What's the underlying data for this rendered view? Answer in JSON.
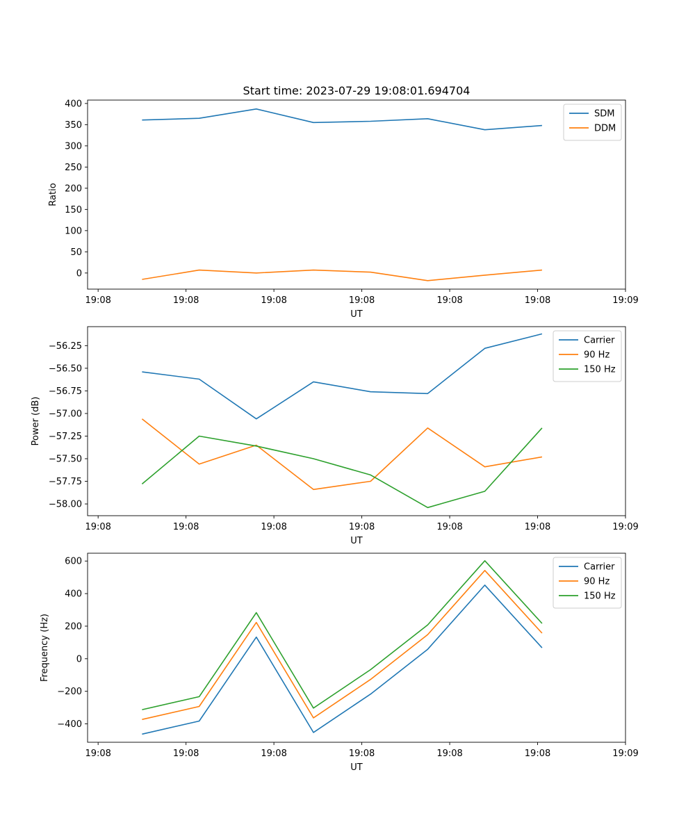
{
  "figure_title": "Start time: 2023-07-29 19:08:01.694704",
  "chart_data": [
    {
      "type": "line",
      "title": "Start time: 2023-07-29 19:08:01.694704",
      "xlabel": "UT",
      "ylabel": "Ratio",
      "x_tick_labels": [
        "19:08",
        "19:08",
        "19:08",
        "19:08",
        "19:08",
        "19:08",
        "19:09"
      ],
      "x": [
        0.5,
        1.15,
        1.8,
        2.45,
        3.1,
        3.75,
        4.4,
        5.05
      ],
      "xlim": [
        -0.12,
        6.0
      ],
      "ylim": [
        -38,
        408
      ],
      "yticks": [
        0,
        50,
        100,
        150,
        200,
        250,
        300,
        350,
        400
      ],
      "legend": "top-right",
      "series": [
        {
          "name": "SDM",
          "color": "#1f77b4",
          "values": [
            361,
            365,
            387,
            355,
            358,
            364,
            338,
            348
          ]
        },
        {
          "name": "DDM",
          "color": "#ff7f0e",
          "values": [
            -15,
            7,
            0,
            7,
            2,
            -18,
            -5,
            7
          ]
        }
      ]
    },
    {
      "type": "line",
      "title": "",
      "xlabel": "UT",
      "ylabel": "Power (dB)",
      "x_tick_labels": [
        "19:08",
        "19:08",
        "19:08",
        "19:08",
        "19:08",
        "19:08",
        "19:09"
      ],
      "x": [
        0.5,
        1.15,
        1.8,
        2.45,
        3.1,
        3.75,
        4.4,
        5.05
      ],
      "xlim": [
        -0.12,
        6.0
      ],
      "ylim": [
        -58.13,
        -56.04
      ],
      "yticks": [
        -58.0,
        -57.75,
        -57.5,
        -57.25,
        -57.0,
        -56.75,
        -56.5,
        -56.25
      ],
      "ytick_labels": [
        "−58.00",
        "−57.75",
        "−57.50",
        "−57.25",
        "−57.00",
        "−56.75",
        "−56.50",
        "−56.25"
      ],
      "legend": "top-right",
      "series": [
        {
          "name": "Carrier",
          "color": "#1f77b4",
          "values": [
            -56.54,
            -56.62,
            -57.06,
            -56.65,
            -56.76,
            -56.78,
            -56.28,
            -56.12
          ]
        },
        {
          "name": "90 Hz",
          "color": "#ff7f0e",
          "values": [
            -57.06,
            -57.56,
            -57.35,
            -57.84,
            -57.75,
            -57.16,
            -57.59,
            -57.48
          ]
        },
        {
          "name": "150 Hz",
          "color": "#2ca02c",
          "values": [
            -57.78,
            -57.25,
            -57.36,
            -57.5,
            -57.68,
            -58.04,
            -57.86,
            -57.16
          ]
        }
      ]
    },
    {
      "type": "line",
      "title": "",
      "xlabel": "UT",
      "ylabel": "Frequency (Hz)",
      "x_tick_labels": [
        "19:08",
        "19:08",
        "19:08",
        "19:08",
        "19:08",
        "19:08",
        "19:09"
      ],
      "x": [
        0.5,
        1.15,
        1.8,
        2.45,
        3.1,
        3.75,
        4.4,
        5.05
      ],
      "xlim": [
        -0.12,
        6.0
      ],
      "ylim": [
        -513,
        648
      ],
      "yticks": [
        -400,
        -200,
        0,
        200,
        400,
        600
      ],
      "ytick_labels": [
        "−400",
        "−200",
        "0",
        "200",
        "400",
        "600"
      ],
      "legend": "top-right",
      "series": [
        {
          "name": "Carrier",
          "color": "#1f77b4",
          "values": [
            -463,
            -383,
            133,
            -453,
            -217,
            58,
            452,
            67
          ]
        },
        {
          "name": "90 Hz",
          "color": "#ff7f0e",
          "values": [
            -373,
            -293,
            223,
            -363,
            -127,
            148,
            542,
            157
          ]
        },
        {
          "name": "150 Hz",
          "color": "#2ca02c",
          "values": [
            -313,
            -233,
            283,
            -303,
            -67,
            208,
            602,
            217
          ]
        }
      ]
    }
  ]
}
